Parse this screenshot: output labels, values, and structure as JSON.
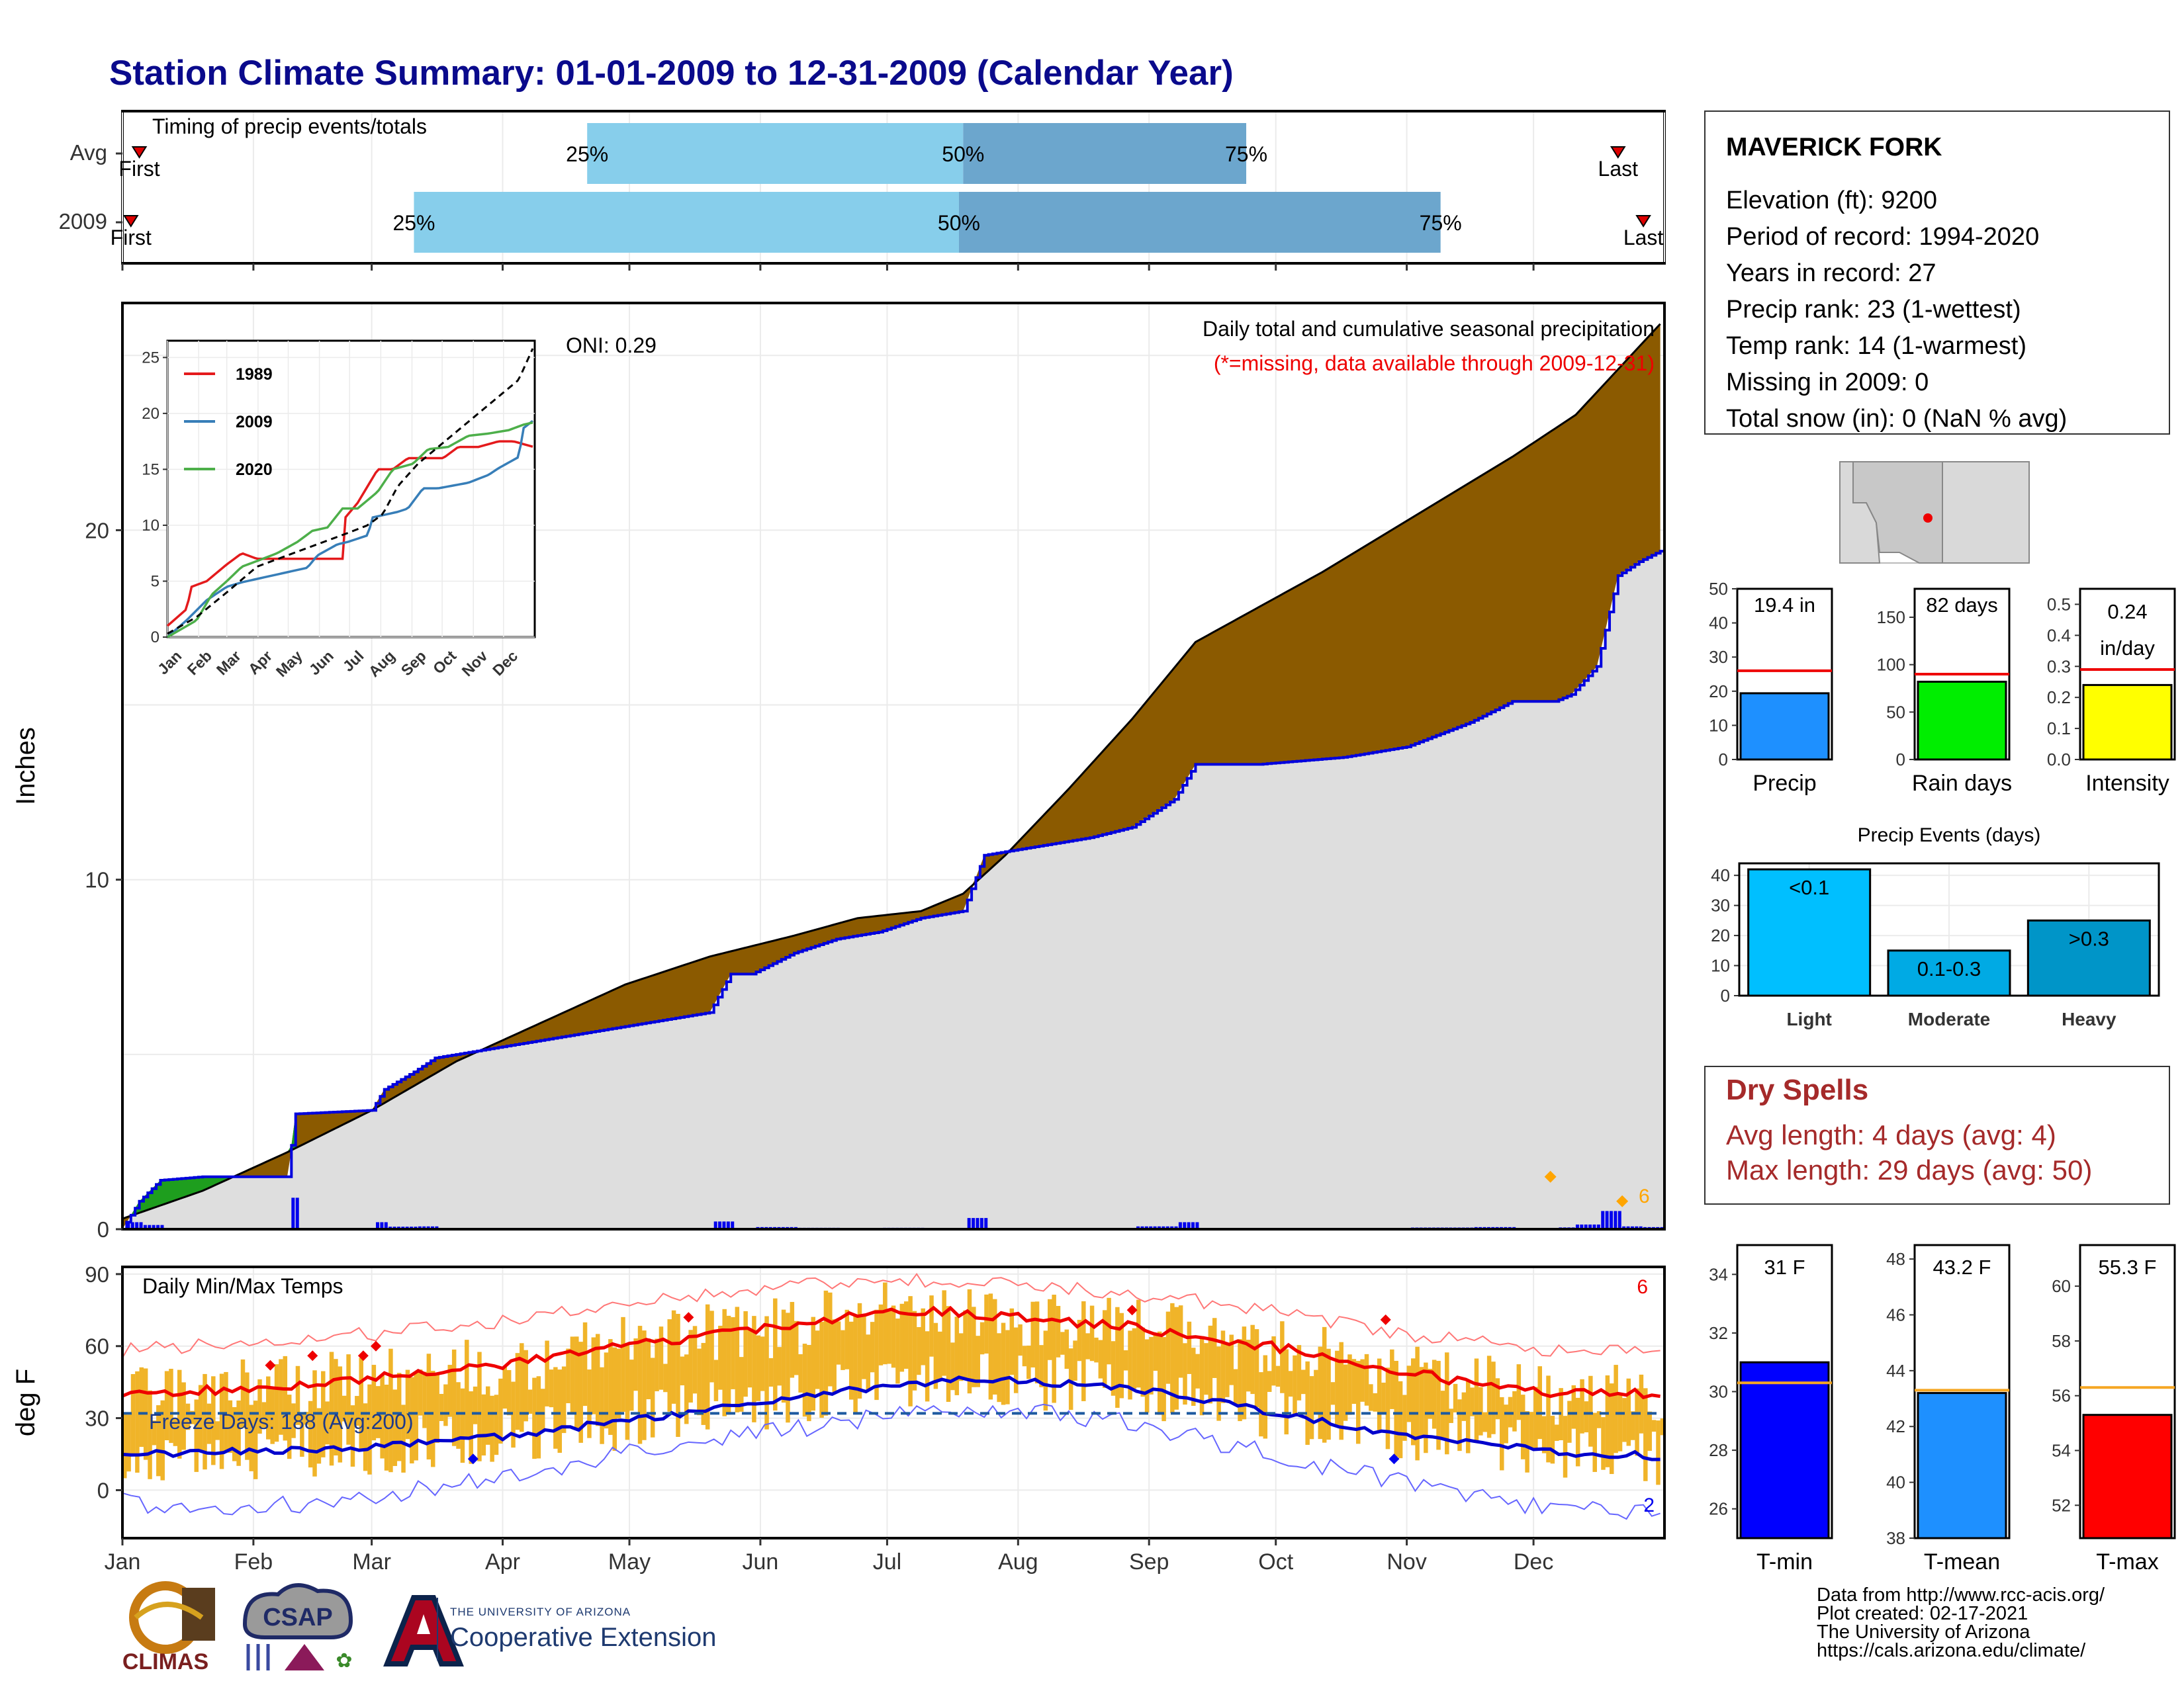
{
  "title": "Station Climate Summary: 01-01-2009 to 12-31-2009 (Calendar Year)",
  "timing_panel": {
    "title": "Timing of precip events/totals",
    "rows": [
      {
        "label": "Avg",
        "first_label": "First",
        "last_label": "Last",
        "p25": 0.25,
        "p50": 0.5,
        "p75": 0.75,
        "p25_day": 111,
        "p50_day": 200,
        "p75_day": 267,
        "first_day": 5,
        "last_day": 355
      },
      {
        "label": "2009",
        "first_label": "First",
        "last_label": "Last",
        "p25": 0.25,
        "p50": 0.5,
        "p75": 0.75,
        "p25_day": 70,
        "p50_day": 199,
        "p75_day": 313,
        "first_day": 3,
        "last_day": 361
      }
    ],
    "pct_labels": [
      "25%",
      "50%",
      "75%"
    ]
  },
  "precip_panel": {
    "ylabel": "Inches",
    "subtitle": "Daily total and cumulative seasonal precipitation",
    "missing_note": "(*=missing, data available through 2009-12-31)",
    "oni_label": "ONI: 0.29",
    "max_count_label": "6",
    "colors": {
      "avg_fill": "#8b5a00",
      "year_fill": "#dedede",
      "year_line": "#0000dd",
      "above_fill": "#1e9e1e",
      "daily_bar": "#0000ee",
      "extreme": "#ffa500"
    }
  },
  "inset_panel": {
    "legend": [
      {
        "name": "1989",
        "color": "#e41a1c"
      },
      {
        "name": "2009",
        "color": "#377eb8"
      },
      {
        "name": "2020",
        "color": "#4daf4a"
      }
    ]
  },
  "temp_panel": {
    "ylabel": "deg F",
    "title": "Daily Min/Max Temps",
    "freeze_label": "Freeze Days: 188 (Avg:200)",
    "max_count_label": "6",
    "min_count_label": "2"
  },
  "months": [
    "Jan",
    "Feb",
    "Mar",
    "Apr",
    "May",
    "Jun",
    "Jul",
    "Aug",
    "Sep",
    "Oct",
    "Nov",
    "Dec"
  ],
  "station": {
    "name": "MAVERICK FORK",
    "lines": [
      "Elevation (ft): 9200",
      "Period of record: 1994-2020",
      "Years in record: 27",
      "Precip rank: 23 (1-wettest)",
      "Temp rank: 14 (1-warmest)",
      "Missing in 2009: 0",
      "Total snow (in): 0 (NaN % avg)"
    ]
  },
  "mini_precip": [
    {
      "name": "Precip",
      "label": "19.4 in",
      "value": 19.4,
      "avg": 26,
      "ymax": 50,
      "ticks": [
        0,
        10,
        20,
        30,
        40,
        50
      ],
      "color": "#1e90ff"
    },
    {
      "name": "Rain days",
      "label": "82 days",
      "value": 82,
      "avg": 90,
      "ymax": 180,
      "ticks": [
        0,
        50,
        100,
        150
      ],
      "color": "#00ee00"
    },
    {
      "name": "Intensity",
      "label": "0.24 in/day",
      "label_line1": "0.24",
      "label_line2": "in/day",
      "value": 0.24,
      "avg": 0.29,
      "ymax": 0.55,
      "ticks": [
        "0.0",
        "0.1",
        "0.2",
        "0.3",
        "0.4",
        "0.5"
      ],
      "color": "#ffff00"
    }
  ],
  "precip_events": {
    "title": "Precip Events (days)",
    "categories": [
      "Light",
      "Moderate",
      "Heavy"
    ],
    "bar_labels": [
      "<0.1",
      "0.1-0.3",
      ">0.3"
    ],
    "values": [
      42,
      15,
      25
    ],
    "ticks": [
      0,
      10,
      20,
      30,
      40
    ],
    "colors": [
      "#00bfff",
      "#00aae4",
      "#0095c8"
    ]
  },
  "dry_spells": {
    "title": "Dry Spells",
    "lines": [
      "Avg length: 4 days (avg: 4)",
      "Max length: 29 days (avg: 50)"
    ]
  },
  "mini_temps": [
    {
      "name": "T-min",
      "label": "31 F",
      "value": 31.0,
      "avg": 30.3,
      "ymin": 25,
      "ymax": 35,
      "ticks": [
        26,
        28,
        30,
        32,
        34
      ],
      "color": "#0000ff"
    },
    {
      "name": "T-mean",
      "label": "43.2 F",
      "value": 43.2,
      "avg": 43.3,
      "ymin": 38,
      "ymax": 48.5,
      "ticks": [
        38,
        40,
        42,
        44,
        46,
        48
      ],
      "color": "#1e90ff"
    },
    {
      "name": "T-max",
      "label": "55.3 F",
      "value": 55.3,
      "avg": 56.3,
      "ymin": 50.8,
      "ymax": 61.5,
      "ticks": [
        52,
        54,
        56,
        58,
        60
      ],
      "color": "#ff0000"
    }
  ],
  "credits": [
    "Data from http://www.rcc-acis.org/",
    "Plot created: 02-17-2021",
    "The University of Arizona",
    "https://cals.arizona.edu/climate/"
  ],
  "logos": {
    "climas": "CLIMAS",
    "csap": "CSAP",
    "coop_small": "THE UNIVERSITY OF ARIZONA",
    "coop_big": "Cooperative Extension"
  },
  "chart_data": [
    {
      "type": "area",
      "title": "Daily total and cumulative seasonal precipitation",
      "ylabel": "Inches",
      "ylim": [
        0,
        26.5
      ],
      "yticks": [
        0,
        10,
        20
      ],
      "x_unit": "day of year 2009",
      "xlim": [
        1,
        365
      ],
      "series": [
        {
          "name": "Avg",
          "x": [
            1,
            20,
            40,
            60,
            80,
            100,
            120,
            140,
            160,
            175,
            190,
            200,
            210,
            225,
            240,
            255,
            270,
            285,
            300,
            315,
            330,
            345,
            365
          ],
          "y": [
            0.3,
            1.1,
            2.2,
            3.4,
            4.8,
            5.9,
            7.0,
            7.8,
            8.4,
            8.9,
            9.1,
            9.6,
            10.7,
            12.6,
            14.6,
            16.8,
            17.8,
            18.8,
            19.9,
            21.0,
            22.1,
            23.3,
            25.9
          ]
        },
        {
          "name": "2009",
          "x": [
            1,
            5,
            10,
            20,
            35,
            40,
            42,
            60,
            63,
            70,
            75,
            100,
            140,
            145,
            150,
            160,
            170,
            180,
            190,
            200,
            205,
            230,
            240,
            250,
            255,
            270,
            290,
            305,
            320,
            330,
            340,
            344,
            350,
            355,
            360,
            365
          ],
          "y": [
            0.0,
            0.8,
            1.4,
            1.5,
            1.5,
            1.5,
            3.3,
            3.4,
            4.0,
            4.5,
            4.9,
            5.4,
            6.2,
            7.3,
            7.3,
            7.9,
            8.3,
            8.5,
            8.9,
            9.1,
            10.7,
            11.2,
            11.5,
            12.3,
            13.3,
            13.3,
            13.5,
            13.8,
            14.5,
            15.1,
            15.1,
            15.3,
            16.1,
            18.7,
            19.1,
            19.4
          ]
        }
      ],
      "daily_max_events": [
        {
          "x": 339,
          "y": 1.5
        },
        {
          "x": 356,
          "y": 0.8
        }
      ]
    },
    {
      "type": "line",
      "title": "",
      "ylim": [
        0,
        26.5
      ],
      "yticks": [
        0,
        5,
        10,
        15,
        20,
        25
      ],
      "categories": [
        "Jan",
        "Feb",
        "Mar",
        "Apr",
        "May",
        "Jun",
        "Jul",
        "Aug",
        "Sep",
        "Oct",
        "Nov",
        "Dec"
      ],
      "x_unit": "day of year",
      "series": [
        {
          "name": "1989",
          "x": [
            1,
            20,
            25,
            40,
            60,
            75,
            90,
            110,
            130,
            150,
            175,
            176,
            190,
            200,
            210,
            225,
            240,
            260,
            275,
            290,
            310,
            330,
            345,
            365
          ],
          "y": [
            1.0,
            2.5,
            4.5,
            5.0,
            6.5,
            7.5,
            7.0,
            7.0,
            7.0,
            7.0,
            7.0,
            10.5,
            12.0,
            13.5,
            15.0,
            15.0,
            16.0,
            16.0,
            16.0,
            17.0,
            17.0,
            17.5,
            17.5,
            17.0
          ]
        },
        {
          "name": "2009",
          "x": [
            1,
            20,
            40,
            60,
            75,
            100,
            140,
            150,
            170,
            180,
            200,
            205,
            230,
            240,
            255,
            270,
            300,
            320,
            330,
            350,
            355,
            365
          ],
          "y": [
            0.0,
            1.5,
            3.3,
            4.5,
            4.9,
            5.4,
            6.2,
            7.3,
            8.3,
            8.5,
            9.1,
            10.7,
            11.2,
            11.5,
            13.3,
            13.3,
            13.8,
            14.5,
            15.1,
            16.1,
            18.7,
            19.4
          ]
        },
        {
          "name": "2020",
          "x": [
            1,
            30,
            45,
            60,
            75,
            90,
            110,
            130,
            145,
            160,
            175,
            190,
            210,
            225,
            245,
            260,
            280,
            300,
            320,
            340,
            355,
            365
          ],
          "y": [
            0.0,
            1.5,
            3.8,
            5.0,
            6.3,
            6.8,
            7.5,
            8.5,
            9.5,
            9.8,
            11.5,
            11.5,
            13.0,
            15.0,
            15.5,
            16.8,
            17.0,
            18.0,
            18.2,
            18.5,
            19.0,
            19.2
          ]
        },
        {
          "name": "Avg",
          "x": [
            1,
            30,
            60,
            90,
            120,
            150,
            180,
            200,
            215,
            230,
            250,
            270,
            290,
            310,
            330,
            350,
            365
          ],
          "y": [
            0.3,
            1.8,
            4.0,
            6.3,
            7.3,
            8.3,
            9.3,
            10.0,
            11.0,
            13.5,
            15.5,
            17.0,
            18.5,
            20.0,
            21.5,
            23.0,
            26.0
          ]
        }
      ]
    },
    {
      "type": "line",
      "title": "Daily Min/Max Temps",
      "ylabel": "deg F",
      "ylim": [
        -20,
        93
      ],
      "yticks": [
        0,
        30,
        60,
        90
      ],
      "series": [
        {
          "name": "Avg Tmax",
          "x": [
            1,
            30,
            60,
            90,
            120,
            150,
            180,
            200,
            220,
            240,
            260,
            280,
            300,
            320,
            340,
            365
          ],
          "y": [
            40,
            42,
            47,
            52,
            60,
            67,
            74,
            74,
            71,
            68,
            63,
            58,
            50,
            45,
            40,
            40
          ]
        },
        {
          "name": "Avg Tmin",
          "x": [
            1,
            30,
            60,
            90,
            120,
            150,
            180,
            200,
            220,
            240,
            260,
            280,
            300,
            320,
            340,
            365
          ],
          "y": [
            15,
            16,
            18,
            22,
            29,
            36,
            43,
            46,
            45,
            42,
            37,
            30,
            24,
            20,
            16,
            14
          ]
        },
        {
          "name": "Record Tmax",
          "x": [
            1,
            30,
            60,
            90,
            120,
            150,
            180,
            200,
            220,
            240,
            260,
            280,
            300,
            320,
            340,
            365
          ],
          "y": [
            58,
            62,
            65,
            70,
            77,
            84,
            88,
            87,
            85,
            82,
            78,
            73,
            66,
            62,
            58,
            58
          ]
        },
        {
          "name": "Record Tmin",
          "x": [
            1,
            30,
            60,
            90,
            120,
            150,
            180,
            200,
            220,
            240,
            260,
            280,
            300,
            320,
            340,
            365
          ],
          "y": [
            -5,
            -8,
            -3,
            5,
            15,
            23,
            30,
            33,
            32,
            28,
            20,
            12,
            5,
            -3,
            -8,
            -10
          ]
        }
      ],
      "freeze_line": 32
    }
  ]
}
